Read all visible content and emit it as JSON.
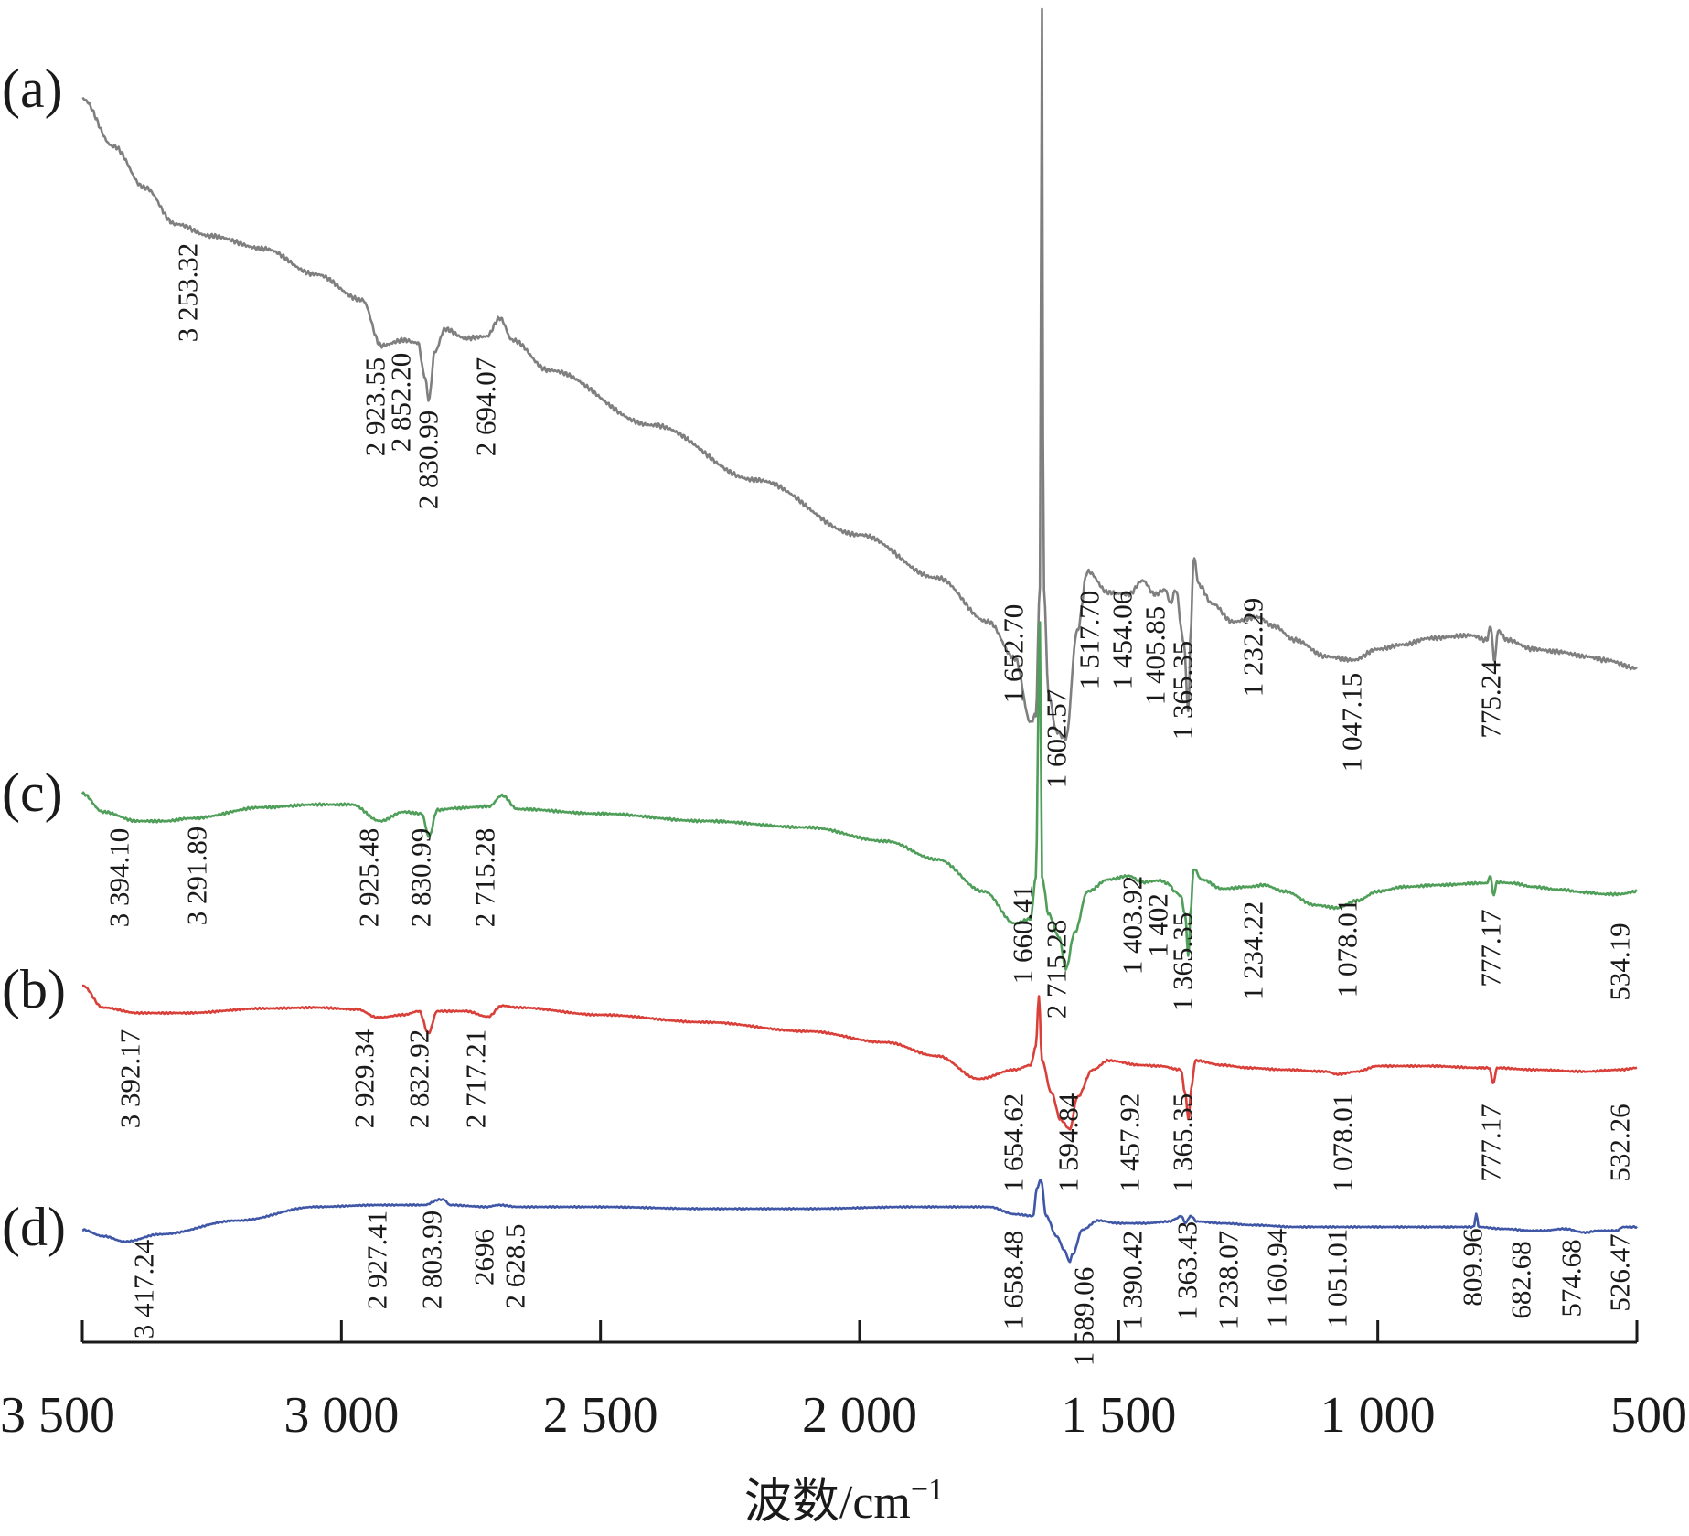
{
  "chart_data": {
    "type": "line",
    "title": "",
    "xlabel": "波数/cm",
    "xlabel_superscript": "−1",
    "ylabel": "",
    "xlim": [
      3500,
      500
    ],
    "x_reversed": true,
    "grid": false,
    "x_ticks": [
      {
        "value": 3500,
        "label": "3 500"
      },
      {
        "value": 3000,
        "label": "3 000"
      },
      {
        "value": 2500,
        "label": "2 500"
      },
      {
        "value": 2000,
        "label": "2 000"
      },
      {
        "value": 1500,
        "label": "1 500"
      },
      {
        "value": 1000,
        "label": "1 000"
      },
      {
        "value": 500,
        "label": "500"
      }
    ],
    "series": [
      {
        "label": "(a)",
        "color": "#7f7f7f",
        "peaks": [
          "3 253.32",
          "2 923.55",
          "2 852.20",
          "2 830.99",
          "2 694.07",
          "1 652.70",
          "1 602.57",
          "1 517.70",
          "1 454.06",
          "1 405.85",
          "1 365.35",
          "1 232.29",
          "1 047.15",
          "775.24"
        ]
      },
      {
        "label": "(c)",
        "color": "#4f9e59",
        "peaks": [
          "3 394.10",
          "3 291.89",
          "2 925.48",
          "2 830.99",
          "2 715.28",
          "1 660.41",
          "2 715.28",
          "1 403.92",
          "1 402",
          "1 365.35",
          "1 234.22",
          "1 078.01",
          "777.17",
          "534.19"
        ]
      },
      {
        "label": "(b)",
        "color": "#d9403a",
        "peaks": [
          "3 392.17",
          "2 929.34",
          "2 832.92",
          "2 717.21",
          "1 654.62",
          "1 594.84",
          "1 457.92",
          "1 365.35",
          "1 078.01",
          "777.17",
          "532.26"
        ]
      },
      {
        "label": "(d)",
        "color": "#3f57a6",
        "peaks": [
          "3 417.24",
          "2 927.41",
          "2 803.99",
          "2696",
          "2 628.5",
          "1 658.48",
          "1 589.06",
          "1 390.42",
          "1 363.43",
          "1 238.07",
          "1 160.94",
          "1 051.01",
          "809.96",
          "682.68",
          "574.68",
          "526.47"
        ]
      }
    ]
  }
}
